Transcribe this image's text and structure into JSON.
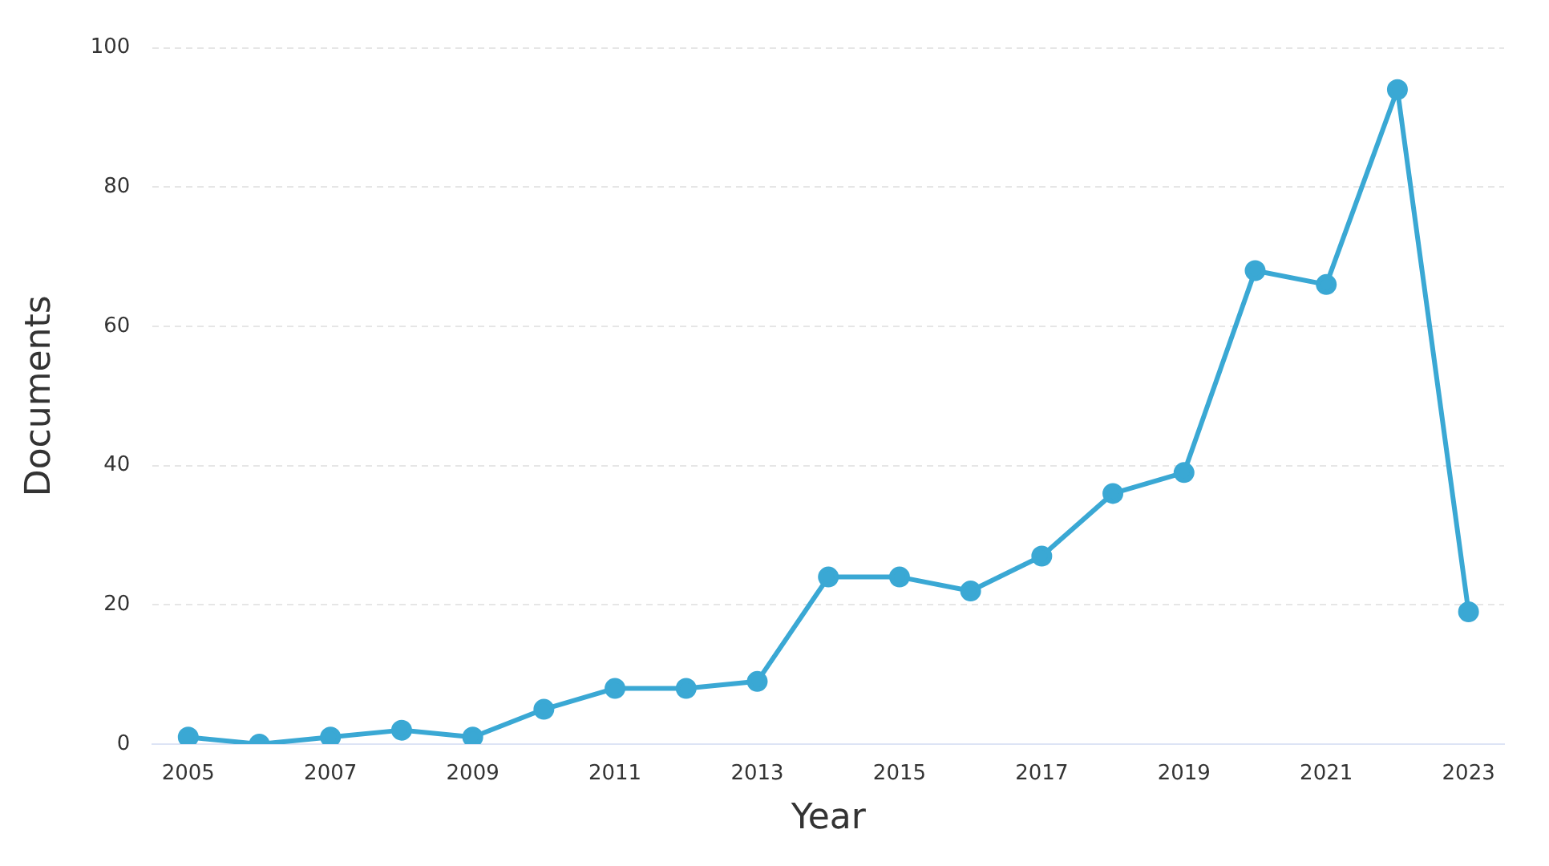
{
  "chart_data": {
    "type": "line",
    "xlabel": "Year",
    "ylabel": "Documents",
    "x": [
      2005,
      2006,
      2007,
      2008,
      2009,
      2010,
      2011,
      2012,
      2013,
      2014,
      2015,
      2016,
      2017,
      2018,
      2019,
      2020,
      2021,
      2022,
      2023
    ],
    "series": [
      {
        "color": "#3aa8d4",
        "values": [
          1,
          0,
          1,
          2,
          1,
          5,
          8,
          8,
          9,
          24,
          24,
          22,
          27,
          36,
          39,
          68,
          66,
          94,
          19
        ]
      }
    ],
    "xlim": [
      2004.5,
      2023.5
    ],
    "xticks": [
      2005,
      2007,
      2009,
      2011,
      2013,
      2015,
      2017,
      2019,
      2021,
      2023
    ],
    "ylim": [
      0,
      100
    ],
    "yticks": [
      0,
      20,
      40,
      60,
      80,
      100
    ],
    "grid": "y",
    "marker": "circle",
    "line_style": "solid",
    "legend": false
  }
}
